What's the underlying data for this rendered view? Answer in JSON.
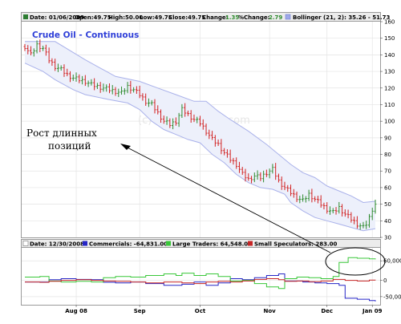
{
  "chart_data": [
    {
      "type": "ohlc",
      "title": "Crude Oil - Continuous",
      "watermark": "(c) TimingCharts.com",
      "header": {
        "date": "Date: 01/06/2009",
        "open": "Open:49.75",
        "high": "High:50.00",
        "low": "Low:49.75",
        "close": "Close:49.75",
        "change_label": "Change:",
        "change_value": "1.35",
        "pct_label": "%Change:",
        "pct_value": "2.79",
        "bollinger": "Bollinger (21, 2): 35.26 - 51.73"
      },
      "ylim": [
        30,
        160
      ],
      "yticks": [
        30,
        40,
        50,
        60,
        70,
        80,
        90,
        100,
        110,
        120,
        130,
        140,
        150,
        160
      ],
      "x_range": [
        0,
        116
      ],
      "xticks": [
        {
          "label": "Aug 08",
          "x": 17
        },
        {
          "label": "Sep",
          "x": 38
        },
        {
          "label": "Oct",
          "x": 58
        },
        {
          "label": "Nov",
          "x": 81
        },
        {
          "label": "Dec",
          "x": 100
        },
        {
          "label": "Jan 09",
          "x": 115
        }
      ],
      "close_series": [
        [
          0,
          145
        ],
        [
          2,
          140
        ],
        [
          4,
          146
        ],
        [
          6,
          144
        ],
        [
          8,
          137
        ],
        [
          10,
          133
        ],
        [
          12,
          131
        ],
        [
          14,
          128
        ],
        [
          16,
          126
        ],
        [
          18,
          125
        ],
        [
          20,
          124
        ],
        [
          22,
          122
        ],
        [
          24,
          121
        ],
        [
          26,
          120
        ],
        [
          28,
          119
        ],
        [
          30,
          118
        ],
        [
          32,
          117
        ],
        [
          34,
          121
        ],
        [
          36,
          119
        ],
        [
          38,
          116
        ],
        [
          40,
          112
        ],
        [
          42,
          110
        ],
        [
          44,
          105
        ],
        [
          46,
          100
        ],
        [
          48,
          98
        ],
        [
          50,
          100
        ],
        [
          52,
          107
        ],
        [
          54,
          104
        ],
        [
          56,
          101
        ],
        [
          58,
          99
        ],
        [
          60,
          94
        ],
        [
          62,
          89
        ],
        [
          64,
          86
        ],
        [
          66,
          81
        ],
        [
          68,
          77
        ],
        [
          70,
          74
        ],
        [
          72,
          68
        ],
        [
          74,
          65
        ],
        [
          76,
          67
        ],
        [
          78,
          66
        ],
        [
          80,
          69
        ],
        [
          82,
          71
        ],
        [
          84,
          64
        ],
        [
          86,
          60
        ],
        [
          88,
          57
        ],
        [
          90,
          54
        ],
        [
          92,
          52
        ],
        [
          94,
          56
        ],
        [
          96,
          53
        ],
        [
          98,
          50
        ],
        [
          100,
          47
        ],
        [
          102,
          45
        ],
        [
          104,
          48
        ],
        [
          106,
          44
        ],
        [
          108,
          41
        ],
        [
          110,
          38
        ],
        [
          112,
          36
        ],
        [
          113,
          38
        ],
        [
          114,
          42
        ],
        [
          115,
          47
        ],
        [
          116,
          50
        ]
      ],
      "bollinger_upper": [
        [
          0,
          148
        ],
        [
          10,
          148
        ],
        [
          20,
          137
        ],
        [
          30,
          127
        ],
        [
          38,
          124
        ],
        [
          44,
          120
        ],
        [
          50,
          116
        ],
        [
          56,
          112
        ],
        [
          60,
          112
        ],
        [
          64,
          106
        ],
        [
          68,
          101
        ],
        [
          74,
          94
        ],
        [
          80,
          86
        ],
        [
          84,
          80
        ],
        [
          88,
          74
        ],
        [
          92,
          69
        ],
        [
          96,
          66
        ],
        [
          100,
          61
        ],
        [
          104,
          58
        ],
        [
          108,
          55
        ],
        [
          112,
          51
        ],
        [
          116,
          51.73
        ]
      ],
      "bollinger_lower": [
        [
          0,
          135
        ],
        [
          6,
          130
        ],
        [
          10,
          125
        ],
        [
          16,
          119
        ],
        [
          20,
          116
        ],
        [
          28,
          113
        ],
        [
          34,
          111
        ],
        [
          38,
          107
        ],
        [
          42,
          100
        ],
        [
          46,
          95
        ],
        [
          50,
          92
        ],
        [
          54,
          89
        ],
        [
          58,
          87
        ],
        [
          62,
          80
        ],
        [
          66,
          75
        ],
        [
          70,
          68
        ],
        [
          74,
          63
        ],
        [
          78,
          60
        ],
        [
          82,
          59
        ],
        [
          86,
          56
        ],
        [
          88,
          51
        ],
        [
          92,
          46
        ],
        [
          96,
          42
        ],
        [
          100,
          40
        ],
        [
          104,
          38
        ],
        [
          108,
          36
        ],
        [
          112,
          34
        ],
        [
          116,
          35.26
        ]
      ]
    },
    {
      "type": "line",
      "header": {
        "date": "Date: 12/30/2008",
        "series_labels": [
          {
            "label": "Commercials: -64,831.00",
            "color": "#2626c6"
          },
          {
            "label": "Large Traders: 64,548.00",
            "color": "#39c739"
          },
          {
            "label": "Small Speculators: 283.00",
            "color": "#c62626"
          }
        ]
      },
      "ylim": [
        -75000,
        100000
      ],
      "yticks": [
        {
          "value": 60000,
          "label": "60,000"
        },
        {
          "value": 0,
          "label": "0"
        },
        {
          "value": -50000,
          "label": "-50,000"
        }
      ],
      "x_range": [
        0,
        116
      ],
      "series": [
        {
          "name": "Commercials",
          "color": "#2626c6",
          "points": [
            [
              0,
              -5000
            ],
            [
              5,
              -5000
            ],
            [
              8,
              2000
            ],
            [
              12,
              5000
            ],
            [
              17,
              3000
            ],
            [
              22,
              2000
            ],
            [
              26,
              -6000
            ],
            [
              30,
              -8000
            ],
            [
              35,
              -5000
            ],
            [
              40,
              -10000
            ],
            [
              46,
              -15000
            ],
            [
              52,
              -12000
            ],
            [
              56,
              -5000
            ],
            [
              60,
              -15000
            ],
            [
              64,
              -8000
            ],
            [
              68,
              5000
            ],
            [
              72,
              2000
            ],
            [
              76,
              8000
            ],
            [
              80,
              15000
            ],
            [
              84,
              20000
            ],
            [
              86,
              -2000
            ],
            [
              92,
              -5000
            ],
            [
              96,
              -8000
            ],
            [
              100,
              -10000
            ],
            [
              104,
              -15000
            ],
            [
              106,
              -55000
            ],
            [
              110,
              -58000
            ],
            [
              114,
              -62000
            ],
            [
              116,
              -64831
            ]
          ]
        },
        {
          "name": "Large Traders",
          "color": "#39c739",
          "points": [
            [
              0,
              10000
            ],
            [
              5,
              12000
            ],
            [
              8,
              -2000
            ],
            [
              12,
              -5000
            ],
            [
              17,
              -3000
            ],
            [
              22,
              -5000
            ],
            [
              26,
              8000
            ],
            [
              30,
              12000
            ],
            [
              35,
              10000
            ],
            [
              40,
              15000
            ],
            [
              46,
              20000
            ],
            [
              50,
              15000
            ],
            [
              52,
              22000
            ],
            [
              56,
              15000
            ],
            [
              60,
              20000
            ],
            [
              64,
              12000
            ],
            [
              68,
              -2000
            ],
            [
              72,
              0
            ],
            [
              76,
              -10000
            ],
            [
              80,
              -20000
            ],
            [
              84,
              -25000
            ],
            [
              86,
              5000
            ],
            [
              90,
              10000
            ],
            [
              94,
              8000
            ],
            [
              98,
              5000
            ],
            [
              102,
              12000
            ],
            [
              104,
              55000
            ],
            [
              107,
              70000
            ],
            [
              110,
              68000
            ],
            [
              114,
              66000
            ],
            [
              116,
              64548
            ]
          ]
        },
        {
          "name": "Small Speculators",
          "color": "#c62626",
          "points": [
            [
              0,
              -5000
            ],
            [
              5,
              -6000
            ],
            [
              8,
              -3000
            ],
            [
              12,
              0
            ],
            [
              17,
              2000
            ],
            [
              22,
              0
            ],
            [
              26,
              -2000
            ],
            [
              30,
              -3000
            ],
            [
              35,
              -5000
            ],
            [
              40,
              -8000
            ],
            [
              46,
              -5000
            ],
            [
              52,
              -8000
            ],
            [
              56,
              -10000
            ],
            [
              60,
              -5000
            ],
            [
              64,
              -3000
            ],
            [
              68,
              -5000
            ],
            [
              72,
              -2000
            ],
            [
              76,
              3000
            ],
            [
              80,
              5000
            ],
            [
              84,
              2000
            ],
            [
              86,
              -3000
            ],
            [
              90,
              -2000
            ],
            [
              94,
              -4000
            ],
            [
              98,
              -2000
            ],
            [
              102,
              3000
            ],
            [
              106,
              0
            ],
            [
              110,
              -2000
            ],
            [
              114,
              1000
            ],
            [
              116,
              283
            ]
          ]
        }
      ]
    }
  ],
  "annotation": {
    "text_line1": "Рост длинных",
    "text_line2": "позиций"
  }
}
